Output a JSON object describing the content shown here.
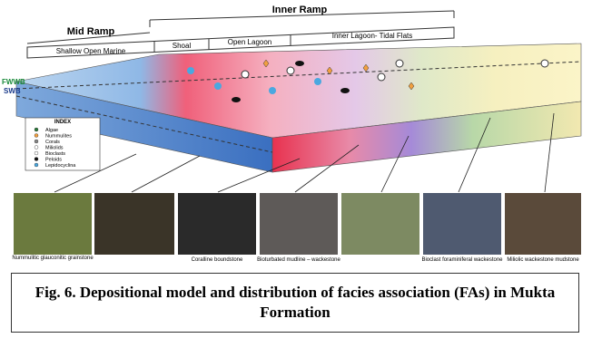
{
  "figure": {
    "zones": {
      "inner_ramp": "Inner Ramp",
      "mid_ramp": "Mid Ramp"
    },
    "subzones": [
      "Shallow Open Marine",
      "Shoal",
      "Open Lagoon",
      "Inner Lagoon- Tidal Flats"
    ],
    "levels": [
      "FWWB",
      "SWB"
    ],
    "legend": {
      "title": "INDEX",
      "items": [
        "Algae",
        "Nummulites",
        "Corals",
        "Miliolids",
        "Bioclasts",
        "Peloids",
        "Lepidocyclina"
      ]
    },
    "photo_captions": [
      "Nummulitic glauconitic grainstone",
      "Coralline boundstone",
      "Bioturbated mudline – wackestone",
      "Bioclast foraminiferal wackestone",
      "Miliolic wackestone mudstone"
    ],
    "caption": "Fig. 6. Depositional model and distribution of facies association (FAs) in Mukta Formation"
  }
}
